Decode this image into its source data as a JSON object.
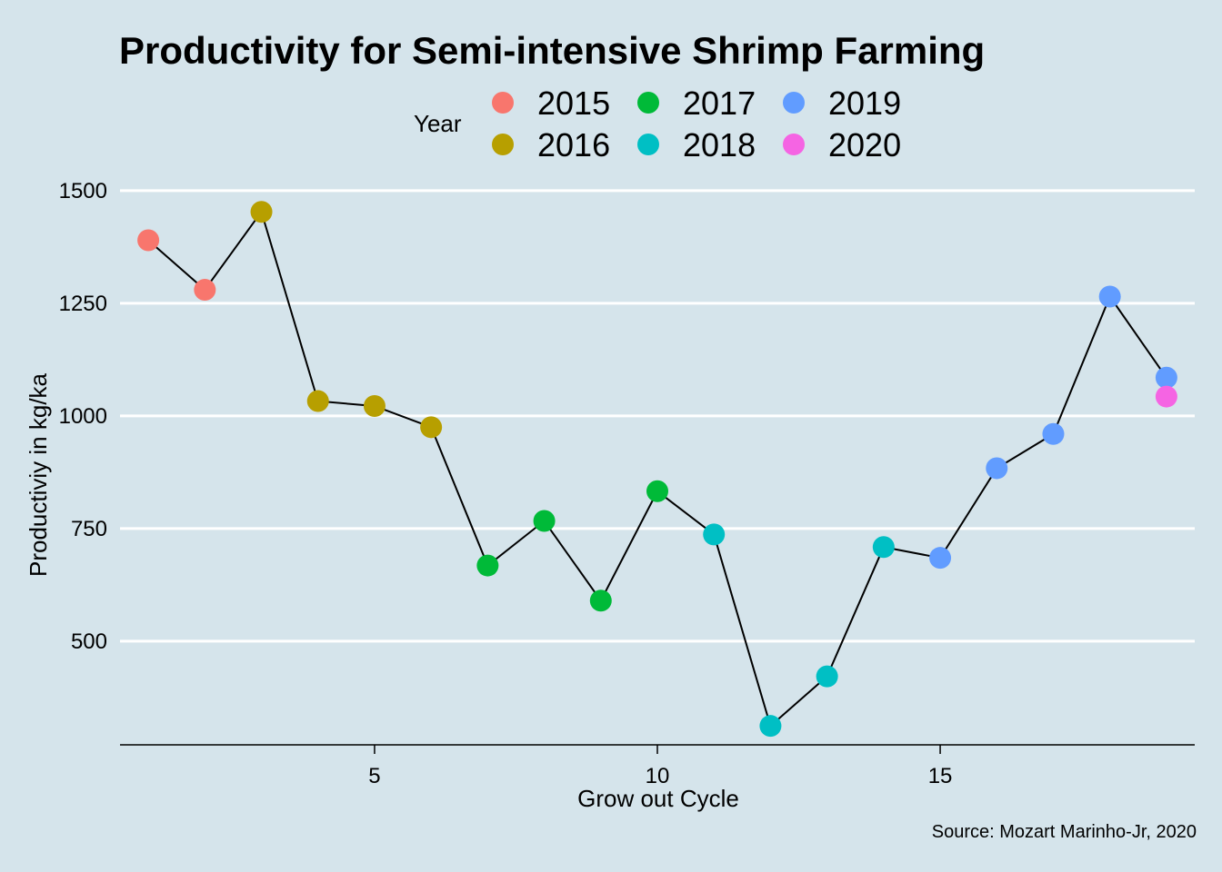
{
  "chart_data": {
    "type": "line",
    "title": "Productivity for Semi-intensive Shrimp Farming",
    "xlabel": "Grow out Cycle",
    "ylabel": "Productiviy in kg/ka",
    "caption": "Source: Mozart Marinho-Jr, 2020",
    "legend_title": "Year",
    "legend_position": "top",
    "grid": "horizontal major lines",
    "xlim": [
      0.5,
      19.5
    ],
    "ylim": [
      270,
      1520
    ],
    "x_ticks": [
      5,
      10,
      15
    ],
    "x_tick_labels": [
      "5",
      "10",
      "15"
    ],
    "y_ticks": [
      500,
      750,
      1000,
      1250,
      1500
    ],
    "y_tick_labels": [
      "500",
      "750",
      "1000",
      "1250",
      "1500"
    ],
    "legend": [
      {
        "label": "2015",
        "color": "#f8766d"
      },
      {
        "label": "2016",
        "color": "#b79f00"
      },
      {
        "label": "2017",
        "color": "#00ba38"
      },
      {
        "label": "2018",
        "color": "#00bfc4"
      },
      {
        "label": "2019",
        "color": "#619cff"
      },
      {
        "label": "2020",
        "color": "#f564e3"
      }
    ],
    "line_color": "#000000",
    "points": [
      {
        "x": 1,
        "y": 1390,
        "year": "2015"
      },
      {
        "x": 2,
        "y": 1280,
        "year": "2015"
      },
      {
        "x": 3,
        "y": 1453,
        "year": "2016"
      },
      {
        "x": 4,
        "y": 1033,
        "year": "2016"
      },
      {
        "x": 5,
        "y": 1022,
        "year": "2016"
      },
      {
        "x": 6,
        "y": 975,
        "year": "2016"
      },
      {
        "x": 7,
        "y": 668,
        "year": "2017"
      },
      {
        "x": 8,
        "y": 767,
        "year": "2017"
      },
      {
        "x": 9,
        "y": 590,
        "year": "2017"
      },
      {
        "x": 10,
        "y": 833,
        "year": "2017"
      },
      {
        "x": 11,
        "y": 737,
        "year": "2018"
      },
      {
        "x": 12,
        "y": 312,
        "year": "2018"
      },
      {
        "x": 13,
        "y": 422,
        "year": "2018"
      },
      {
        "x": 14,
        "y": 709,
        "year": "2018"
      },
      {
        "x": 15,
        "y": 685,
        "year": "2019"
      },
      {
        "x": 16,
        "y": 884,
        "year": "2019"
      },
      {
        "x": 17,
        "y": 960,
        "year": "2019"
      },
      {
        "x": 18,
        "y": 1265,
        "year": "2019"
      },
      {
        "x": 19,
        "y": 1085,
        "year": "2019"
      },
      {
        "x": 19,
        "y": 1043,
        "year": "2020"
      }
    ]
  }
}
